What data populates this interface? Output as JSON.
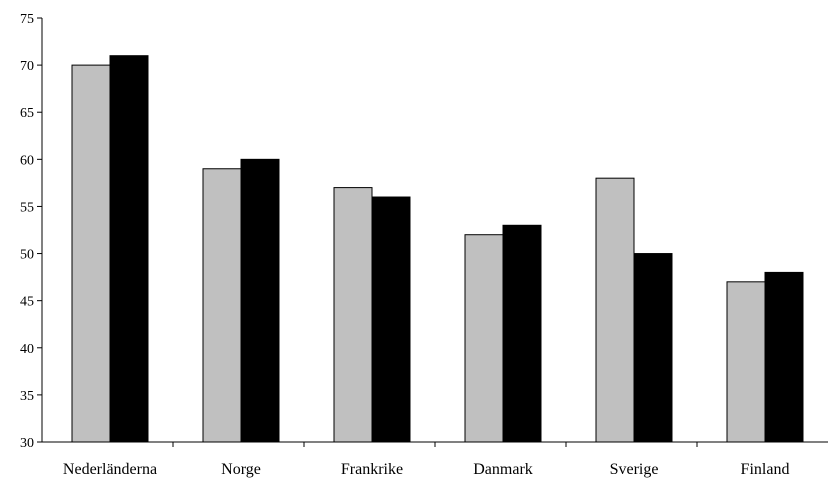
{
  "chart_data": {
    "type": "bar",
    "title": "",
    "xlabel": "",
    "ylabel": "",
    "categories": [
      "Nederländerna",
      "Norge",
      "Frankrike",
      "Danmark",
      "Sverige",
      "Finland"
    ],
    "series": [
      {
        "values": [
          70,
          59,
          57,
          52,
          58,
          47
        ],
        "color": "#c0c0c0"
      },
      {
        "values": [
          71,
          60,
          56,
          53,
          50,
          48
        ],
        "color": "#000000"
      }
    ],
    "ylim": [
      30,
      75
    ],
    "yticks": [
      30,
      35,
      40,
      45,
      50,
      55,
      60,
      65,
      70,
      75
    ],
    "grid": false,
    "legend": "none"
  }
}
